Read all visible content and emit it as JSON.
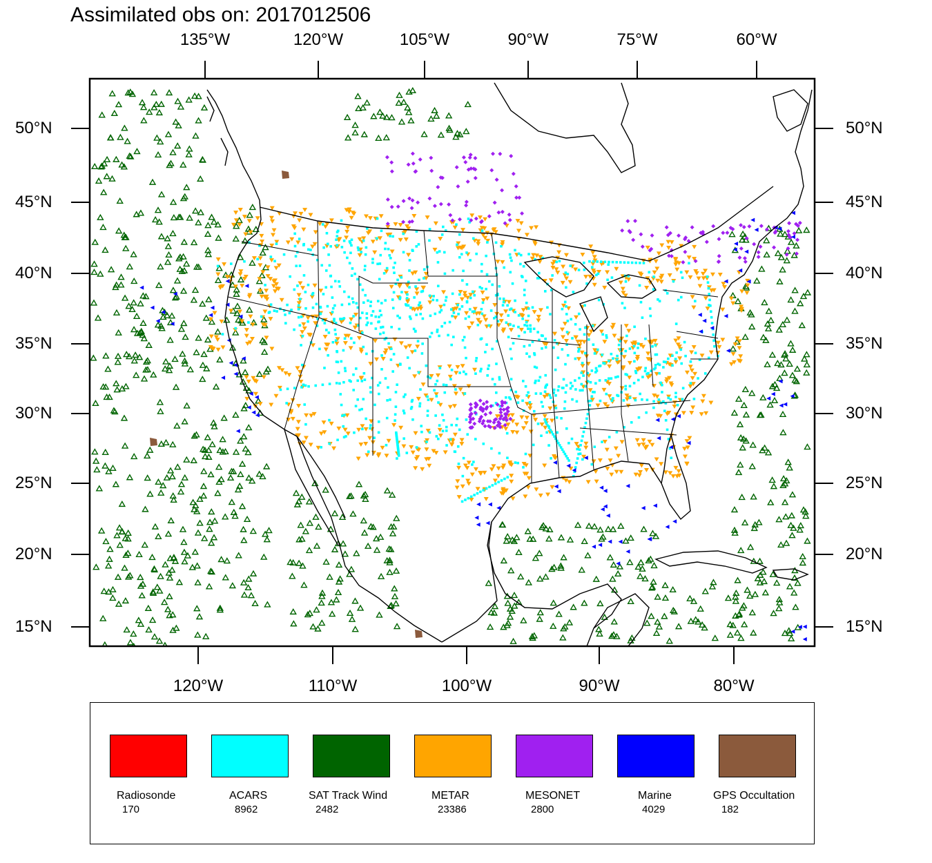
{
  "title": "Assimilated obs on: 2017012506",
  "top_ticks": [
    "135°W",
    "120°W",
    "105°W",
    "90°W",
    "75°W",
    "60°W"
  ],
  "bottom_ticks": [
    "120°W",
    "110°W",
    "100°W",
    "90°W",
    "80°W"
  ],
  "lat_ticks": [
    "50°N",
    "45°N",
    "40°N",
    "35°N",
    "30°N",
    "25°N",
    "20°N",
    "15°N"
  ],
  "colors": {
    "radiosonde": "#ff0000",
    "acars": "#00ffff",
    "sat": "#006400",
    "metar": "#ffa500",
    "mesonet": "#a020f0",
    "marine": "#0000ff",
    "gps": "#8b5a3c",
    "land": "#000000"
  },
  "legend": [
    {
      "name": "Radiosonde",
      "count": "170",
      "color": "#ff0000"
    },
    {
      "name": "ACARS",
      "count": "8962",
      "color": "#00ffff"
    },
    {
      "name": "SAT Track Wind",
      "count": "2482",
      "color": "#006400"
    },
    {
      "name": "METAR",
      "count": "23386",
      "color": "#ffa500"
    },
    {
      "name": "MESONET",
      "count": "2800",
      "color": "#a020f0"
    },
    {
      "name": "Marine",
      "count": "4029",
      "color": "#0000ff"
    },
    {
      "name": "GPS Occultation",
      "count": "182",
      "color": "#8b5a3c"
    }
  ]
}
